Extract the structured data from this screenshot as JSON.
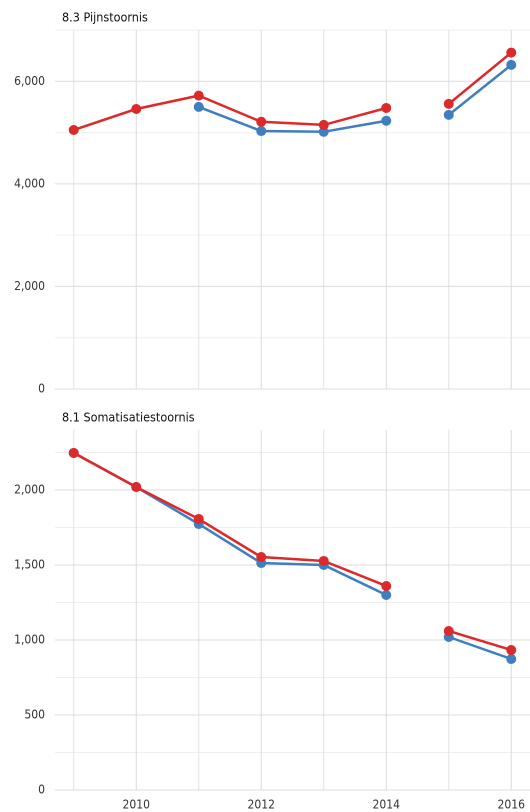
{
  "chart_data": [
    {
      "type": "line",
      "title": "8.3 Pijnstoornis",
      "xlim": [
        2008.7,
        2016.3
      ],
      "xticks": [
        2010,
        2012,
        2014,
        2016
      ],
      "x_minor_ticks": [
        2009,
        2011,
        2013,
        2015
      ],
      "show_xtick_labels": false,
      "ylim": [
        0,
        7000
      ],
      "yticks": [
        0,
        {
          "value": 2000,
          "label": "2,000"
        },
        {
          "value": 4000,
          "label": "4,000"
        },
        {
          "value": 6000,
          "label": "6,000"
        }
      ],
      "y_minor_ticks": [
        1000,
        3000,
        5000,
        7000
      ],
      "grid": true,
      "series": [
        {
          "color": "#3f7fbf",
          "x": [
            2011,
            2012,
            2013,
            2014
          ],
          "values": [
            5500,
            5030,
            5015,
            5230
          ]
        },
        {
          "color": "#3f7fbf",
          "x": [
            2015,
            2016
          ],
          "values": [
            5345,
            6320
          ]
        },
        {
          "color": "#dc2a2a",
          "x": [
            2009,
            2010,
            2011,
            2012,
            2013,
            2014
          ],
          "values": [
            5050,
            5460,
            5720,
            5210,
            5150,
            5480
          ]
        },
        {
          "color": "#dc2a2a",
          "x": [
            2015,
            2016
          ],
          "values": [
            5560,
            6560
          ]
        }
      ]
    },
    {
      "type": "line",
      "title": "8.1 Somatisatiestoornis",
      "xlim": [
        2008.7,
        2016.3
      ],
      "xticks": [
        2010,
        2012,
        2014,
        2016
      ],
      "x_minor_ticks": [
        2009,
        2011,
        2013,
        2015
      ],
      "show_xtick_labels": true,
      "ylim": [
        0,
        2400
      ],
      "yticks": [
        0,
        500,
        {
          "value": 1000,
          "label": "1,000"
        },
        {
          "value": 1500,
          "label": "1,500"
        },
        {
          "value": 2000,
          "label": "2,000"
        }
      ],
      "y_minor_ticks": [
        250,
        750,
        1250,
        1750,
        2250
      ],
      "grid": true,
      "series": [
        {
          "color": "#3f7fbf",
          "x": [
            2009,
            2010,
            2011,
            2012,
            2013,
            2014
          ],
          "values": [
            2247,
            2020,
            1773,
            1513,
            1500,
            1300
          ]
        },
        {
          "color": "#3f7fbf",
          "x": [
            2015,
            2016
          ],
          "values": [
            1020,
            873
          ]
        },
        {
          "color": "#dc2a2a",
          "x": [
            2009,
            2010,
            2011,
            2012,
            2013,
            2014
          ],
          "values": [
            2247,
            2020,
            1807,
            1553,
            1527,
            1360
          ]
        },
        {
          "color": "#dc2a2a",
          "x": [
            2015,
            2016
          ],
          "values": [
            1060,
            933
          ]
        }
      ]
    }
  ]
}
